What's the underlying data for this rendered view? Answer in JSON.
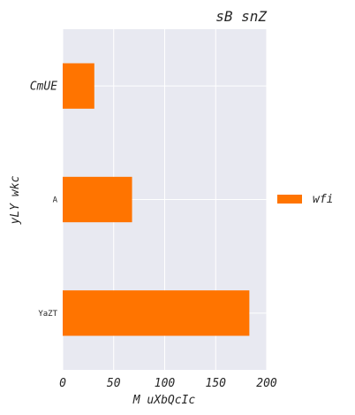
{
  "chart_data": {
    "type": "bar",
    "orientation": "horizontal",
    "title": "sB snZ",
    "xlabel": "M uXbQcIc",
    "ylabel": "yLY wkc",
    "xlim": [
      0,
      200
    ],
    "xticks": [
      0,
      50,
      100,
      150,
      200
    ],
    "categories": [
      "CmUE",
      "A",
      "YaZT"
    ],
    "category_label_sizes": [
      13,
      9,
      9
    ],
    "series": [
      {
        "name": "wfi",
        "values": [
          31,
          68,
          183
        ],
        "color": "#ff7400"
      }
    ],
    "grid": true,
    "background": "#e8e9f1",
    "legend_position": "right"
  }
}
